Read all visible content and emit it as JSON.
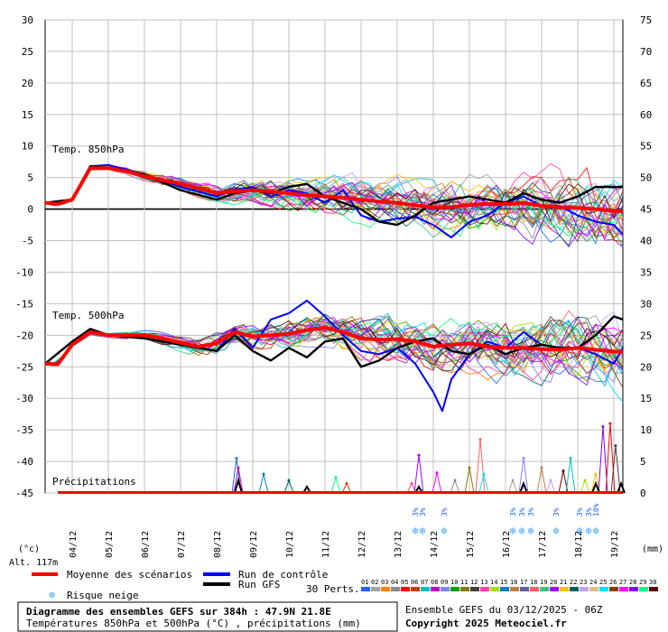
{
  "chart_data": {
    "type": "line",
    "title": "Diagramme des ensembles GEFS sur 384h : 47.9N 21.8E",
    "subtitle": "Températures 850hPa et 500hPa (°C) , précipitations (mm)",
    "left_unit": "(°c)",
    "right_unit": "(mm)",
    "altitude": "Alt. 117m",
    "ylim_left": [
      -45,
      30
    ],
    "ylim_right": [
      0,
      75
    ],
    "left_ticks": [
      "30",
      "25",
      "20",
      "15",
      "10",
      "5",
      "0",
      "-5",
      "-10",
      "-15",
      "-20",
      "-25",
      "-30",
      "-35",
      "-40",
      "-45"
    ],
    "right_ticks": [
      "75",
      "70",
      "65",
      "60",
      "55",
      "50",
      "45",
      "40",
      "35",
      "30",
      "25",
      "20",
      "15",
      "10",
      "5",
      "0"
    ],
    "x_labels": [
      "04/12",
      "05/12",
      "06/12",
      "07/12",
      "08/12",
      "09/12",
      "10/12",
      "11/12",
      "12/12",
      "13/12",
      "14/12",
      "15/12",
      "16/12",
      "17/12",
      "18/12",
      "19/12"
    ],
    "x_range_days": [
      3.25,
      19.25
    ],
    "panel_labels": {
      "t850": "Temp. 850hPa",
      "t500": "Temp. 500hPa",
      "precip": "Précipitations"
    },
    "mean_t850": [
      [
        3.25,
        1
      ],
      [
        3.6,
        0.8
      ],
      [
        4,
        1.5
      ],
      [
        4.5,
        6.5
      ],
      [
        5,
        6.5
      ],
      [
        5.5,
        6
      ],
      [
        6,
        5.2
      ],
      [
        6.5,
        4.6
      ],
      [
        7,
        4
      ],
      [
        7.5,
        3.3
      ],
      [
        8,
        2.5
      ],
      [
        8.5,
        2.8
      ],
      [
        9,
        3
      ],
      [
        9.5,
        2.8
      ],
      [
        10,
        2.5
      ],
      [
        10.5,
        2.2
      ],
      [
        11,
        2
      ],
      [
        11.5,
        1.8
      ],
      [
        12,
        1.5
      ],
      [
        12.5,
        1.2
      ],
      [
        13,
        1
      ],
      [
        13.5,
        0.6
      ],
      [
        14,
        0.3
      ],
      [
        14.5,
        0.3
      ],
      [
        15,
        0.7
      ],
      [
        15.5,
        0.8
      ],
      [
        16,
        0.8
      ],
      [
        16.5,
        1
      ],
      [
        17,
        0.5
      ],
      [
        17.5,
        0.3
      ],
      [
        18,
        0.2
      ],
      [
        18.5,
        0
      ],
      [
        19,
        -0.3
      ],
      [
        19.25,
        -0.3
      ]
    ],
    "mean_t500": [
      [
        3.25,
        -24.5
      ],
      [
        3.6,
        -24.6
      ],
      [
        4,
        -21.5
      ],
      [
        4.5,
        -19.5
      ],
      [
        5,
        -20
      ],
      [
        5.5,
        -20
      ],
      [
        6,
        -20
      ],
      [
        6.5,
        -20.5
      ],
      [
        7,
        -21.2
      ],
      [
        7.5,
        -21.8
      ],
      [
        8,
        -21.3
      ],
      [
        8.5,
        -19.5
      ],
      [
        9,
        -20.2
      ],
      [
        9.5,
        -20
      ],
      [
        10,
        -19.8
      ],
      [
        10.5,
        -19.2
      ],
      [
        11,
        -18.8
      ],
      [
        11.5,
        -19.5
      ],
      [
        12,
        -20.5
      ],
      [
        12.5,
        -20.7
      ],
      [
        13,
        -20.6
      ],
      [
        13.5,
        -21
      ],
      [
        14,
        -21.8
      ],
      [
        14.5,
        -21.5
      ],
      [
        15,
        -21.3
      ],
      [
        15.5,
        -21.8
      ],
      [
        16,
        -22
      ],
      [
        16.5,
        -22
      ],
      [
        17,
        -22.2
      ],
      [
        17.5,
        -22.3
      ],
      [
        18,
        -22
      ],
      [
        18.5,
        -22.3
      ],
      [
        19,
        -22.6
      ],
      [
        19.25,
        -22.6
      ]
    ],
    "control_t850": [
      [
        3.25,
        1
      ],
      [
        4,
        1.5
      ],
      [
        4.5,
        6.8
      ],
      [
        5,
        7
      ],
      [
        6,
        5.5
      ],
      [
        7,
        3.5
      ],
      [
        8,
        2
      ],
      [
        8.5,
        3
      ],
      [
        9,
        3.5
      ],
      [
        9.5,
        2
      ],
      [
        10,
        3
      ],
      [
        10.5,
        2.5
      ],
      [
        11,
        1
      ],
      [
        11.5,
        3
      ],
      [
        12,
        -1
      ],
      [
        12.5,
        -2
      ],
      [
        13,
        -1.5
      ],
      [
        13.5,
        -1.2
      ],
      [
        14,
        -2.5
      ],
      [
        14.5,
        -4.5
      ],
      [
        15,
        -2
      ],
      [
        15.5,
        -1
      ],
      [
        16,
        1
      ],
      [
        16.5,
        2
      ],
      [
        17,
        0.5
      ],
      [
        17.5,
        0.5
      ],
      [
        18,
        -1
      ],
      [
        18.5,
        -2
      ],
      [
        19,
        -2.5
      ],
      [
        19.25,
        -4
      ]
    ],
    "gfs_t850": [
      [
        3.25,
        1
      ],
      [
        4,
        1.5
      ],
      [
        4.5,
        6.8
      ],
      [
        5,
        6.5
      ],
      [
        6,
        5.5
      ],
      [
        7,
        3
      ],
      [
        8,
        1.5
      ],
      [
        8.5,
        2.5
      ],
      [
        9,
        3
      ],
      [
        9.5,
        2.5
      ],
      [
        10,
        3.5
      ],
      [
        10.5,
        4
      ],
      [
        11,
        2
      ],
      [
        11.5,
        1
      ],
      [
        12,
        0
      ],
      [
        12.5,
        -2
      ],
      [
        13,
        -2.5
      ],
      [
        13.5,
        -1
      ],
      [
        14,
        1
      ],
      [
        14.5,
        1.5
      ],
      [
        15,
        2
      ],
      [
        15.5,
        1.5
      ],
      [
        16,
        1
      ],
      [
        16.5,
        2.5
      ],
      [
        17,
        1.5
      ],
      [
        17.5,
        1
      ],
      [
        18,
        2
      ],
      [
        18.5,
        3.5
      ],
      [
        19,
        3.5
      ],
      [
        19.25,
        3.5
      ]
    ],
    "control_t500": [
      [
        3.25,
        -24.5
      ],
      [
        4,
        -21
      ],
      [
        4.5,
        -19
      ],
      [
        5,
        -20
      ],
      [
        6,
        -20.5
      ],
      [
        7,
        -21.5
      ],
      [
        8,
        -22.5
      ],
      [
        8.5,
        -19
      ],
      [
        9,
        -22
      ],
      [
        9.5,
        -17.5
      ],
      [
        10,
        -16.5
      ],
      [
        10.5,
        -14.5
      ],
      [
        11,
        -17
      ],
      [
        11.5,
        -20
      ],
      [
        12,
        -22.5
      ],
      [
        12.5,
        -23
      ],
      [
        13,
        -22
      ],
      [
        13.5,
        -24.5
      ],
      [
        14,
        -29
      ],
      [
        14.25,
        -32
      ],
      [
        14.5,
        -27
      ],
      [
        15,
        -23
      ],
      [
        15.5,
        -21
      ],
      [
        16,
        -22
      ],
      [
        16.5,
        -19.5
      ],
      [
        17,
        -21.5
      ],
      [
        17.5,
        -22
      ],
      [
        18,
        -22
      ],
      [
        18.5,
        -23
      ],
      [
        19,
        -24.5
      ],
      [
        19.25,
        -22
      ]
    ],
    "gfs_t500": [
      [
        3.25,
        -24.5
      ],
      [
        4,
        -21
      ],
      [
        4.5,
        -19
      ],
      [
        5,
        -20
      ],
      [
        6,
        -20.5
      ],
      [
        7,
        -21.5
      ],
      [
        8,
        -22.5
      ],
      [
        8.5,
        -20
      ],
      [
        9,
        -22.5
      ],
      [
        9.5,
        -24
      ],
      [
        10,
        -22
      ],
      [
        10.5,
        -23.5
      ],
      [
        11,
        -21
      ],
      [
        11.5,
        -20.5
      ],
      [
        12,
        -25
      ],
      [
        12.5,
        -24
      ],
      [
        13,
        -22
      ],
      [
        13.5,
        -21
      ],
      [
        14,
        -20.5
      ],
      [
        14.5,
        -22.5
      ],
      [
        15,
        -23
      ],
      [
        15.5,
        -21.5
      ],
      [
        16,
        -23
      ],
      [
        16.5,
        -22
      ],
      [
        17,
        -21.5
      ],
      [
        17.5,
        -22
      ],
      [
        18,
        -22
      ],
      [
        18.5,
        -20
      ],
      [
        19,
        -17
      ],
      [
        19.25,
        -17.5
      ]
    ],
    "precip_spikes": [
      [
        8.55,
        5.5
      ],
      [
        8.6,
        4
      ],
      [
        9.3,
        3
      ],
      [
        10,
        2
      ],
      [
        11.3,
        2.5
      ],
      [
        11.6,
        1.5
      ],
      [
        13.4,
        1.5
      ],
      [
        13.6,
        6
      ],
      [
        14.1,
        3.2
      ],
      [
        14.6,
        2
      ],
      [
        15,
        4
      ],
      [
        15.3,
        8.5
      ],
      [
        15.4,
        3
      ],
      [
        16.2,
        2
      ],
      [
        16.5,
        5.5
      ],
      [
        17,
        4
      ],
      [
        17.25,
        2
      ],
      [
        17.6,
        3.5
      ],
      [
        17.8,
        5.5
      ],
      [
        18.2,
        2
      ],
      [
        18.5,
        3
      ],
      [
        18.7,
        10.5
      ],
      [
        18.9,
        11
      ],
      [
        19.05,
        7.5
      ]
    ],
    "precip_ctrl": [
      [
        8.6,
        2
      ],
      [
        10.5,
        1
      ],
      [
        13.6,
        1
      ],
      [
        16.5,
        1.5
      ],
      [
        18.5,
        1.5
      ],
      [
        19.2,
        1.5
      ]
    ],
    "snow_risk": [
      {
        "day": 13.5,
        "pct": "3%"
      },
      {
        "day": 13.7,
        "pct": "3%"
      },
      {
        "day": 14.3,
        "pct": "3%"
      },
      {
        "day": 16.2,
        "pct": "3%"
      },
      {
        "day": 16.45,
        "pct": "3%"
      },
      {
        "day": 16.7,
        "pct": "3%"
      },
      {
        "day": 17.4,
        "pct": "3%"
      },
      {
        "day": 18.05,
        "pct": "3%"
      },
      {
        "day": 18.3,
        "pct": "3%"
      },
      {
        "day": 18.5,
        "pct": "10%"
      }
    ],
    "members_count": 30,
    "member_colors": [
      "#2060ff",
      "#a0a0a0",
      "#ff8000",
      "#8a8a8a",
      "#ff0000",
      "#c04000",
      "#00c0c0",
      "#c000c0",
      "#8080ff",
      "#00a000",
      "#808000",
      "#404040",
      "#ff40a0",
      "#a0e000",
      "#0080c0",
      "#c08040",
      "#6060a0",
      "#ff6060",
      "#40c080",
      "#a000ff",
      "#ffc000",
      "#006060",
      "#c0a0ff",
      "#e0c080",
      "#00e0ff",
      "#804000",
      "#ff00ff",
      "#8000ff",
      "#00ff80",
      "#600000"
    ]
  },
  "legend": {
    "mean": "Moyenne des scénarios",
    "control": "Run de contrôle",
    "gfs": "Run GFS",
    "snow": "Risque neige",
    "perts_label": "30 Perts.",
    "pert_numbers": [
      "01",
      "02",
      "03",
      "04",
      "05",
      "06",
      "07",
      "08",
      "09",
      "10",
      "11",
      "12",
      "13",
      "14",
      "15",
      "16",
      "17",
      "18",
      "19",
      "20",
      "21",
      "22",
      "23",
      "24",
      "25",
      "26",
      "27",
      "28",
      "29",
      "30"
    ]
  },
  "footer": {
    "run": "Ensemble GEFS du 03/12/2025 - 06Z",
    "copyright": "Copyright 2025 Meteociel.fr"
  },
  "colors": {
    "mean": "#ff0000",
    "control": "#0000ff",
    "gfs": "#000000",
    "grid": "#c0c0c0"
  }
}
